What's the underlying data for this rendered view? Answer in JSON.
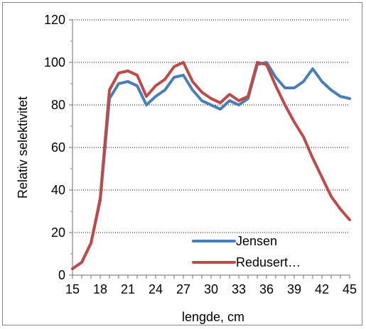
{
  "chart_data": {
    "type": "line",
    "xlabel": "lengde, cm",
    "ylabel": "Relativ selektivitet",
    "x": [
      15,
      16,
      17,
      18,
      19,
      20,
      21,
      22,
      23,
      24,
      25,
      26,
      27,
      28,
      29,
      30,
      31,
      32,
      33,
      34,
      35,
      36,
      37,
      38,
      39,
      40,
      41,
      42,
      43,
      44,
      45
    ],
    "xlim": [
      15,
      45
    ],
    "ylim": [
      0,
      120
    ],
    "xticks": [
      15,
      18,
      21,
      24,
      27,
      30,
      33,
      36,
      39,
      42,
      45
    ],
    "yticks": [
      0,
      20,
      40,
      60,
      80,
      100,
      120
    ],
    "grid": "horizontal dotted",
    "legend_position": "bottom-right inside plot",
    "series": [
      {
        "name": "Jensen",
        "color": "#4a7ebb",
        "values": [
          3,
          6,
          15,
          35,
          83,
          90,
          91,
          89,
          80,
          84,
          87,
          93,
          94,
          87,
          82,
          80,
          78,
          82,
          80,
          83,
          99,
          100,
          93,
          88,
          88,
          91,
          97,
          91,
          87,
          84,
          83
        ]
      },
      {
        "name": "Redusert…",
        "color": "#be4b48",
        "values": [
          3,
          6,
          15,
          36,
          87,
          95,
          96,
          94,
          84,
          89,
          92,
          98,
          100,
          91,
          86,
          83,
          81,
          85,
          82,
          84,
          100,
          99,
          89,
          80,
          72,
          65,
          55,
          46,
          37,
          31,
          26
        ]
      }
    ]
  }
}
